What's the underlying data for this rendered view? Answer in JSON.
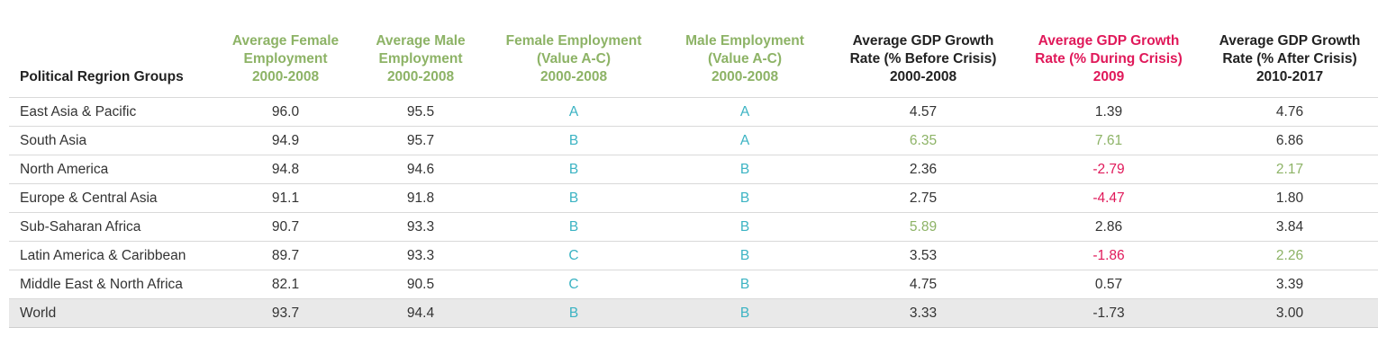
{
  "table": {
    "columns": [
      {
        "lines": [
          "Political Regrion Groups"
        ],
        "color": "dark"
      },
      {
        "lines": [
          "Average Female",
          "Employment",
          "2000-2008"
        ],
        "color": "green"
      },
      {
        "lines": [
          "Average Male",
          "Employment",
          "2000-2008"
        ],
        "color": "green"
      },
      {
        "lines": [
          "Female Employment",
          "(Value A-C)",
          "2000-2008"
        ],
        "color": "green"
      },
      {
        "lines": [
          "Male Employment",
          "(Value A-C)",
          "2000-2008"
        ],
        "color": "green"
      },
      {
        "lines": [
          "Average GDP Growth",
          "Rate (% Before Crisis)",
          "2000-2008"
        ],
        "color": "dark"
      },
      {
        "lines": [
          "Average GDP Growth",
          "Rate (% During Crisis)",
          "2009"
        ],
        "color": "red"
      },
      {
        "lines": [
          "Average GDP Growth",
          "Rate (% After Crisis)",
          "2010-2017"
        ],
        "color": "dark"
      }
    ],
    "rows": [
      {
        "cells": [
          "East Asia & Pacific",
          "96.0",
          "95.5",
          "A",
          "A",
          "4.57",
          "1.39",
          "4.76"
        ],
        "highlights": {}
      },
      {
        "cells": [
          "South Asia",
          "94.9",
          "95.7",
          "B",
          "A",
          "6.35",
          "7.61",
          "6.86"
        ],
        "highlights": {
          "5": "green",
          "6": "green"
        }
      },
      {
        "cells": [
          "North America",
          "94.8",
          "94.6",
          "B",
          "B",
          "2.36",
          "-2.79",
          "2.17"
        ],
        "highlights": {
          "6": "red",
          "7": "green"
        }
      },
      {
        "cells": [
          "Europe & Central Asia",
          "91.1",
          "91.8",
          "B",
          "B",
          "2.75",
          "-4.47",
          "1.80"
        ],
        "highlights": {
          "6": "red"
        }
      },
      {
        "cells": [
          "Sub-Saharan Africa",
          "90.7",
          "93.3",
          "B",
          "B",
          "5.89",
          "2.86",
          "3.84"
        ],
        "highlights": {
          "5": "green"
        }
      },
      {
        "cells": [
          "Latin America & Caribbean",
          "89.7",
          "93.3",
          "C",
          "B",
          "3.53",
          "-1.86",
          "2.26"
        ],
        "highlights": {
          "6": "red",
          "7": "green"
        }
      },
      {
        "cells": [
          "Middle East & North Africa",
          "82.1",
          "90.5",
          "C",
          "B",
          "4.75",
          "0.57",
          "3.39"
        ],
        "highlights": {}
      },
      {
        "cells": [
          "World",
          "93.7",
          "94.4",
          "B",
          "B",
          "3.33",
          "-1.73",
          "3.00"
        ],
        "highlights": {},
        "total": true
      }
    ]
  },
  "colors": {
    "header_green": "#8db366",
    "header_red": "#e0195a",
    "grade_teal": "#3bb3c3",
    "total_row_bg": "#e9e9e9"
  },
  "chart_data": {
    "type": "table",
    "headers": [
      "Political Regrion Groups",
      "Average Female Employment 2000-2008",
      "Average Male Employment 2000-2008",
      "Female Employment (Value A-C) 2000-2008",
      "Male Employment (Value A-C) 2000-2008",
      "Average GDP Growth Rate (% Before Crisis) 2000-2008",
      "Average GDP Growth Rate (% During Crisis) 2009",
      "Average GDP Growth Rate (% After Crisis) 2010-2017"
    ],
    "rows": [
      [
        "East Asia & Pacific",
        96.0,
        95.5,
        "A",
        "A",
        4.57,
        1.39,
        4.76
      ],
      [
        "South Asia",
        94.9,
        95.7,
        "B",
        "A",
        6.35,
        7.61,
        6.86
      ],
      [
        "North America",
        94.8,
        94.6,
        "B",
        "B",
        2.36,
        -2.79,
        2.17
      ],
      [
        "Europe & Central Asia",
        91.1,
        91.8,
        "B",
        "B",
        2.75,
        -4.47,
        1.8
      ],
      [
        "Sub-Saharan Africa",
        90.7,
        93.3,
        "B",
        "B",
        5.89,
        2.86,
        3.84
      ],
      [
        "Latin America & Caribbean",
        89.7,
        93.3,
        "C",
        "B",
        3.53,
        -1.86,
        2.26
      ],
      [
        "Middle East & North Africa",
        82.1,
        90.5,
        "C",
        "B",
        4.75,
        0.57,
        3.39
      ],
      [
        "World",
        93.7,
        94.4,
        "B",
        "B",
        3.33,
        -1.73,
        3.0
      ]
    ]
  }
}
